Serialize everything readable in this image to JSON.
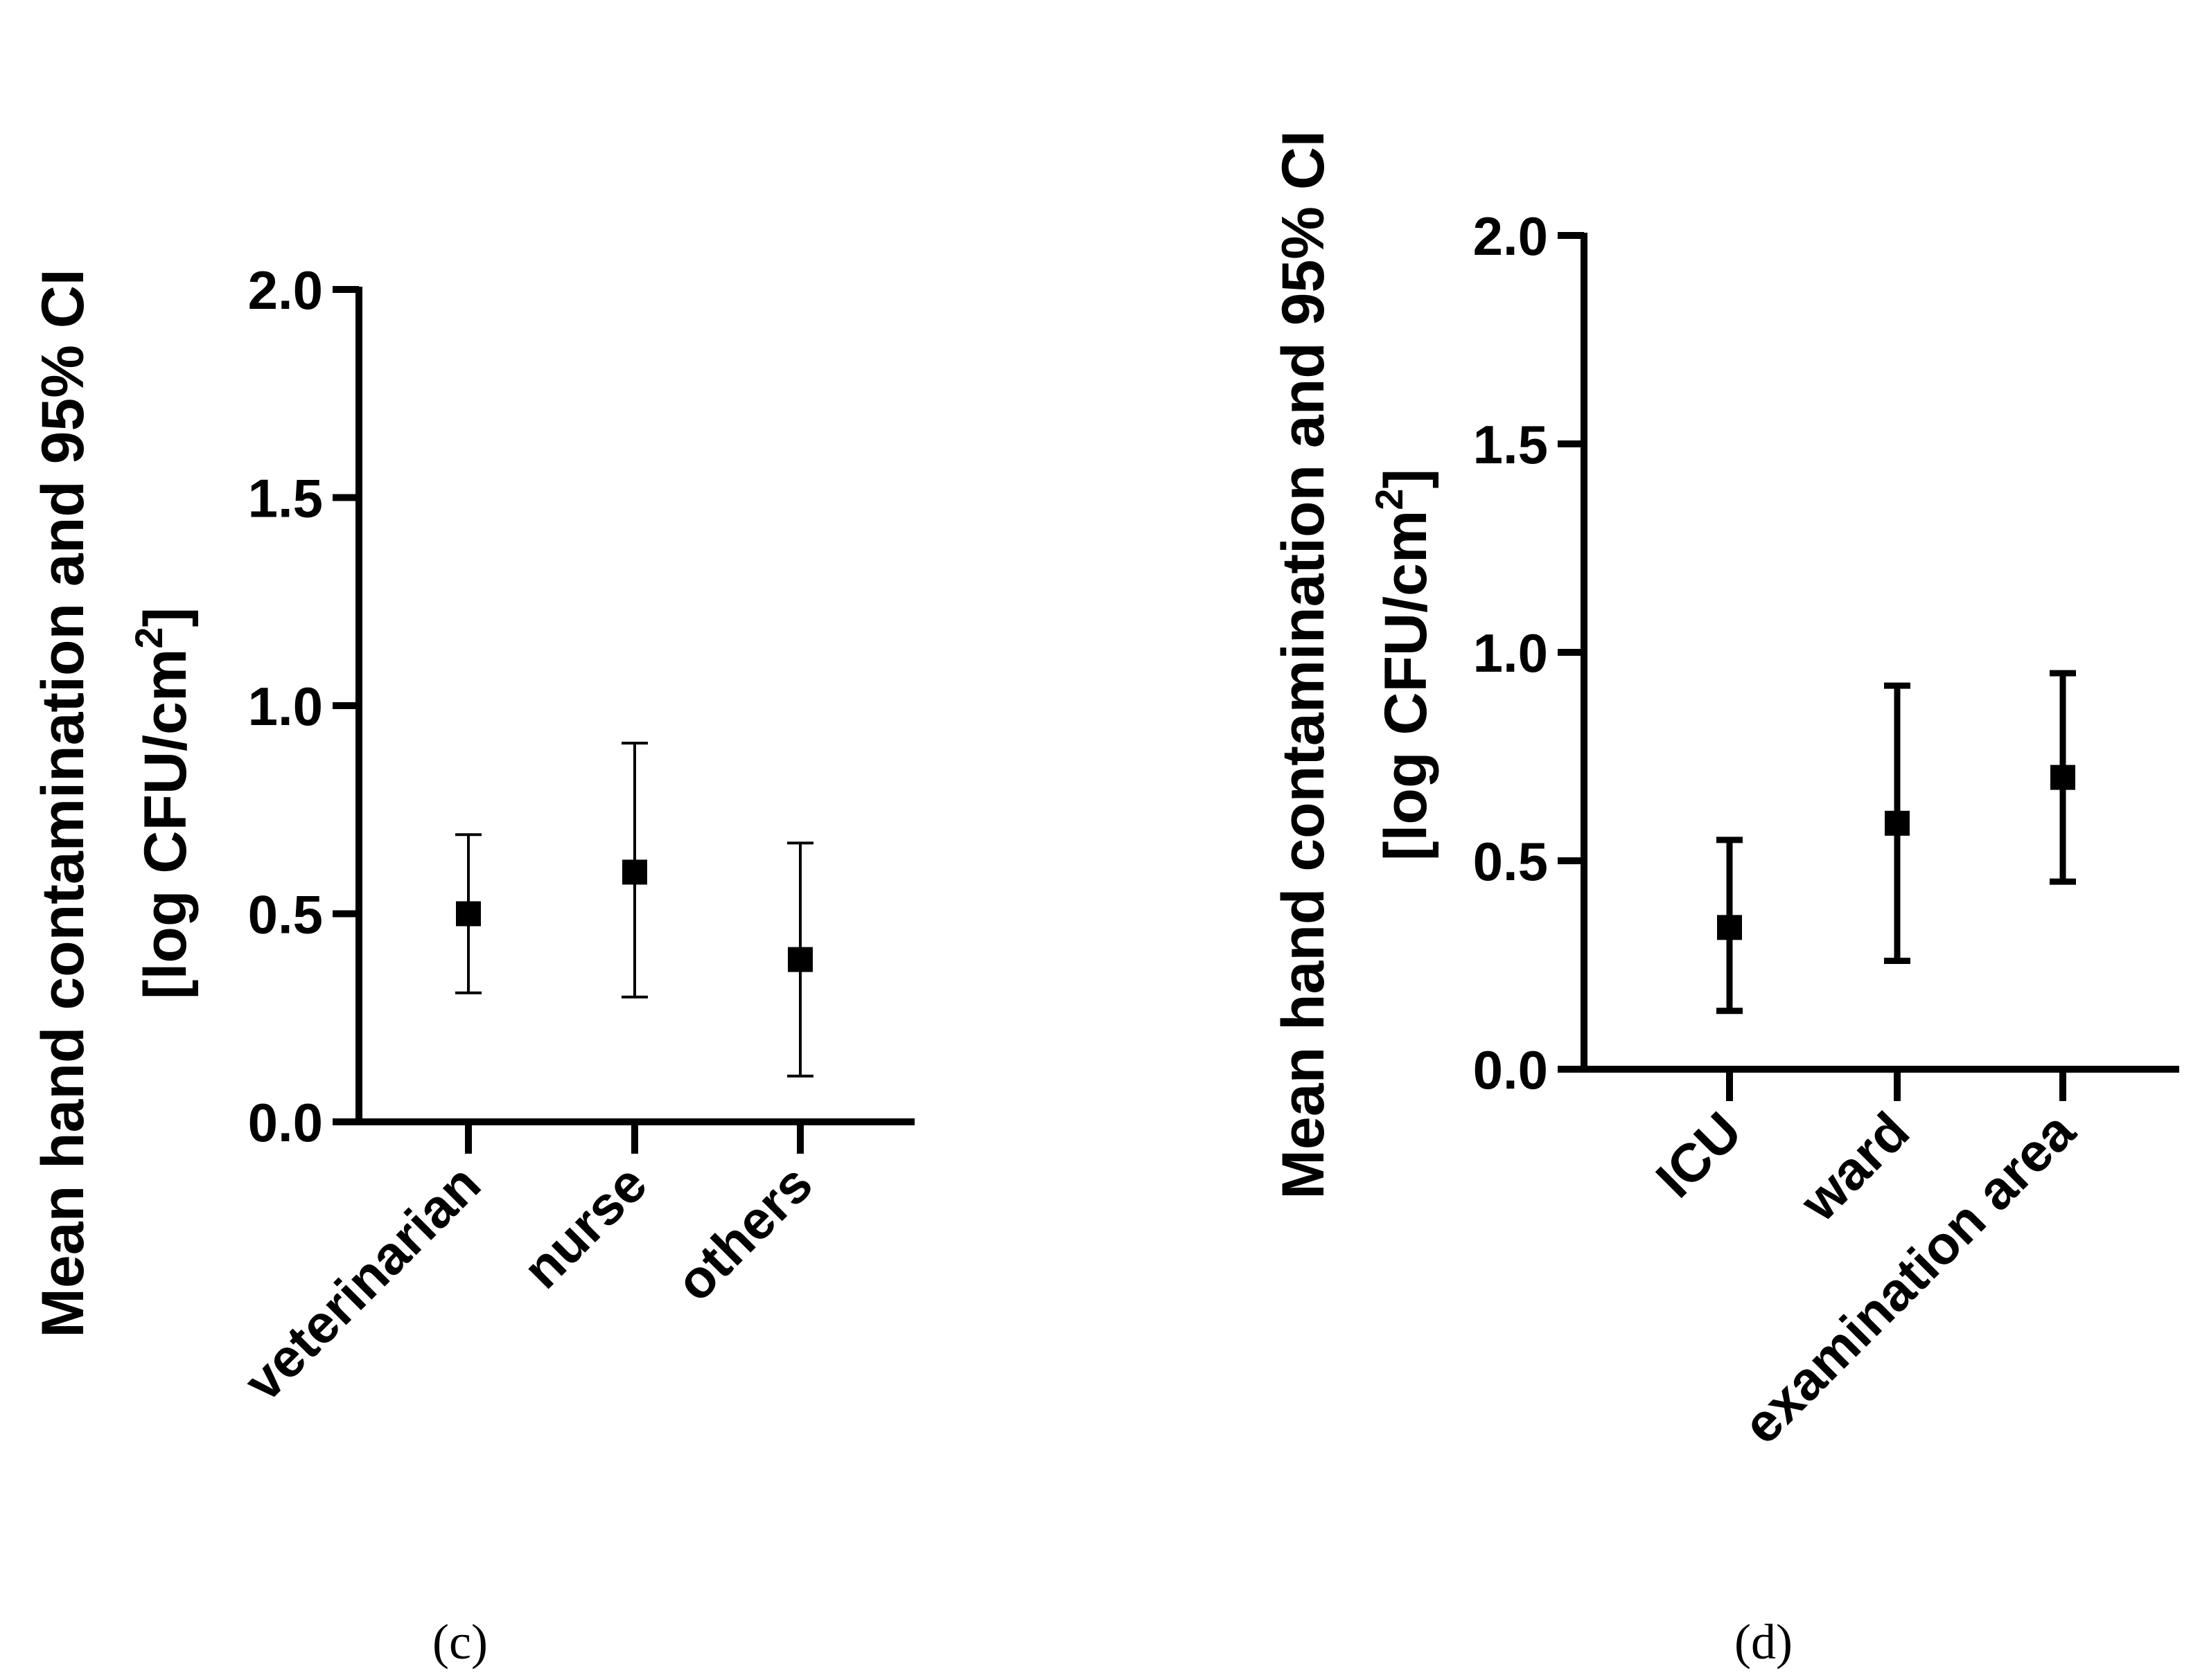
{
  "chart_data": [
    {
      "type": "scatter",
      "panel_label": "(c)",
      "categories": [
        "veterinarian",
        "nurse",
        "others"
      ],
      "values": [
        0.5,
        0.6,
        0.39
      ],
      "ci_low": [
        0.31,
        0.3,
        0.11
      ],
      "ci_high": [
        0.69,
        0.91,
        0.67
      ],
      "ylabel_line1": "Mean hand contamination and 95% CI",
      "ylabel_line2_prefix": "[log CFU/cm",
      "ylabel_line2_sup": "2",
      "ylabel_line2_suffix": "]",
      "ylim": [
        0,
        2.0
      ],
      "yticks": [
        "0.0",
        "0.5",
        "1.0",
        "1.5",
        "2.0"
      ],
      "marker": "square",
      "grid": false
    },
    {
      "type": "scatter",
      "panel_label": "(d)",
      "categories": [
        "ICU",
        "ward",
        "examination area"
      ],
      "values": [
        0.34,
        0.59,
        0.7
      ],
      "ci_low": [
        0.14,
        0.26,
        0.45
      ],
      "ci_high": [
        0.55,
        0.92,
        0.95
      ],
      "ylabel_line1": "Mean hand contamination and 95% CI",
      "ylabel_line2_prefix": "[log CFU/cm",
      "ylabel_line2_sup": "2",
      "ylabel_line2_suffix": "]",
      "ylim": [
        0,
        2.0
      ],
      "yticks": [
        "0.0",
        "0.5",
        "1.0",
        "1.5",
        "2.0"
      ],
      "marker": "square",
      "grid": false
    }
  ]
}
